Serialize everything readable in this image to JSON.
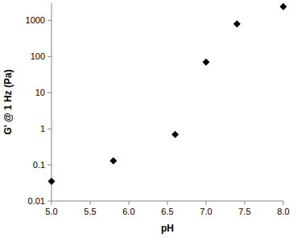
{
  "chart_data": {
    "type": "scatter",
    "x_label": "pH",
    "y_label": "G' @ 1 Hz (Pa)",
    "x": [
      5.0,
      5.8,
      6.6,
      7.0,
      7.4,
      8.0
    ],
    "values": [
      0.035,
      0.13,
      0.7,
      70,
      800,
      2400
    ],
    "color": "#000000",
    "marker": "diamond",
    "log": "y",
    "xlim": [
      5.0,
      8.0
    ],
    "xticks": [
      {
        "value": 5.0,
        "label": "5.0"
      },
      5.5,
      {
        "value": 6.0,
        "label": "6.0"
      },
      6.5,
      {
        "value": 7.0,
        "label": "7.0"
      },
      7.5,
      {
        "value": 8.0,
        "label": "8.0"
      }
    ],
    "ylim": [
      0.01,
      3000
    ],
    "yticks": [
      0.01,
      0.1,
      1,
      10,
      100,
      1000
    ],
    "grid": false
  }
}
